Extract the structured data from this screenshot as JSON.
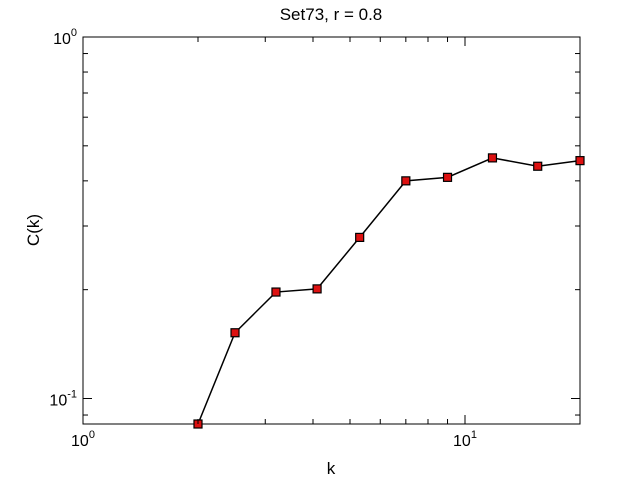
{
  "chart_data": {
    "type": "line",
    "title": "Set73, r = 0.8",
    "xlabel": "k",
    "ylabel": "C(k)",
    "x_scale": "log",
    "y_scale": "log",
    "xlim": [
      1,
      20
    ],
    "ylim": [
      0.085,
      1
    ],
    "x_ticks": [
      {
        "value": 1,
        "base": "10",
        "exp": "0"
      },
      {
        "value": 10,
        "base": "10",
        "exp": "1"
      }
    ],
    "y_ticks": [
      {
        "value": 0.1,
        "base": "10",
        "exp": "-1"
      },
      {
        "value": 1,
        "base": "10",
        "exp": "0"
      }
    ],
    "grid": false,
    "marker": "square",
    "colors": {
      "marker_fill": "#dd1111",
      "line": "#000000",
      "axes": "#000000"
    },
    "series": [
      {
        "x": [
          2,
          2.5,
          3.2,
          4.1,
          5.3,
          7.0,
          9.0,
          11.8,
          15.5,
          20.0
        ],
        "y": [
          0.085,
          0.152,
          0.197,
          0.201,
          0.279,
          0.4,
          0.409,
          0.463,
          0.439,
          0.455
        ]
      }
    ]
  }
}
